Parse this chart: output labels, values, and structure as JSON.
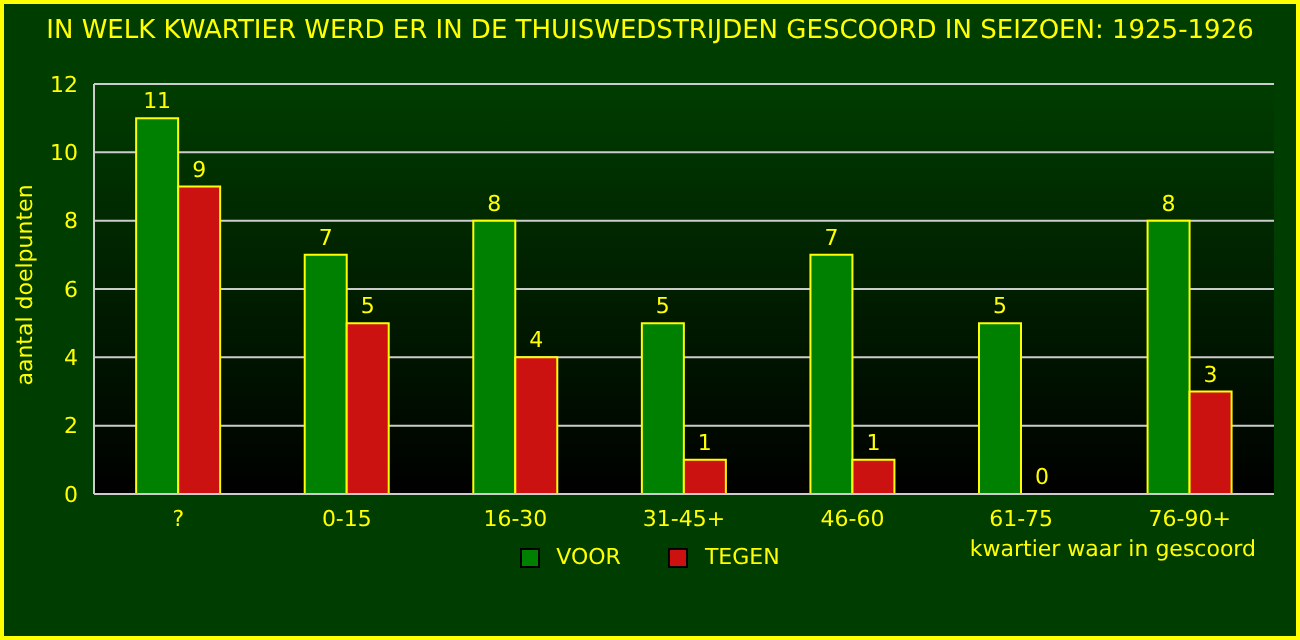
{
  "chart_data": {
    "type": "bar",
    "title": "IN WELK KWARTIER WERD ER IN DE THUISWEDSTRIJDEN GESCOORD IN SEIZOEN: 1925-1926",
    "xlabel": "kwartier waar in gescoord",
    "ylabel": "aantal doelpunten",
    "categories": [
      "?",
      "0-15",
      "16-30",
      "31-45+",
      "46-60",
      "61-75",
      "76-90+"
    ],
    "series": [
      {
        "name": "VOOR",
        "color": "#008000",
        "values": [
          11,
          7,
          8,
          5,
          7,
          5,
          8
        ]
      },
      {
        "name": "TEGEN",
        "color": "#cc1111",
        "values": [
          9,
          5,
          4,
          1,
          1,
          0,
          3
        ]
      }
    ],
    "ylim": [
      0,
      12
    ],
    "yticks": [
      0,
      2,
      4,
      6,
      8,
      10,
      12
    ],
    "grid": "y",
    "legend": "bottom",
    "data_labels": true
  }
}
